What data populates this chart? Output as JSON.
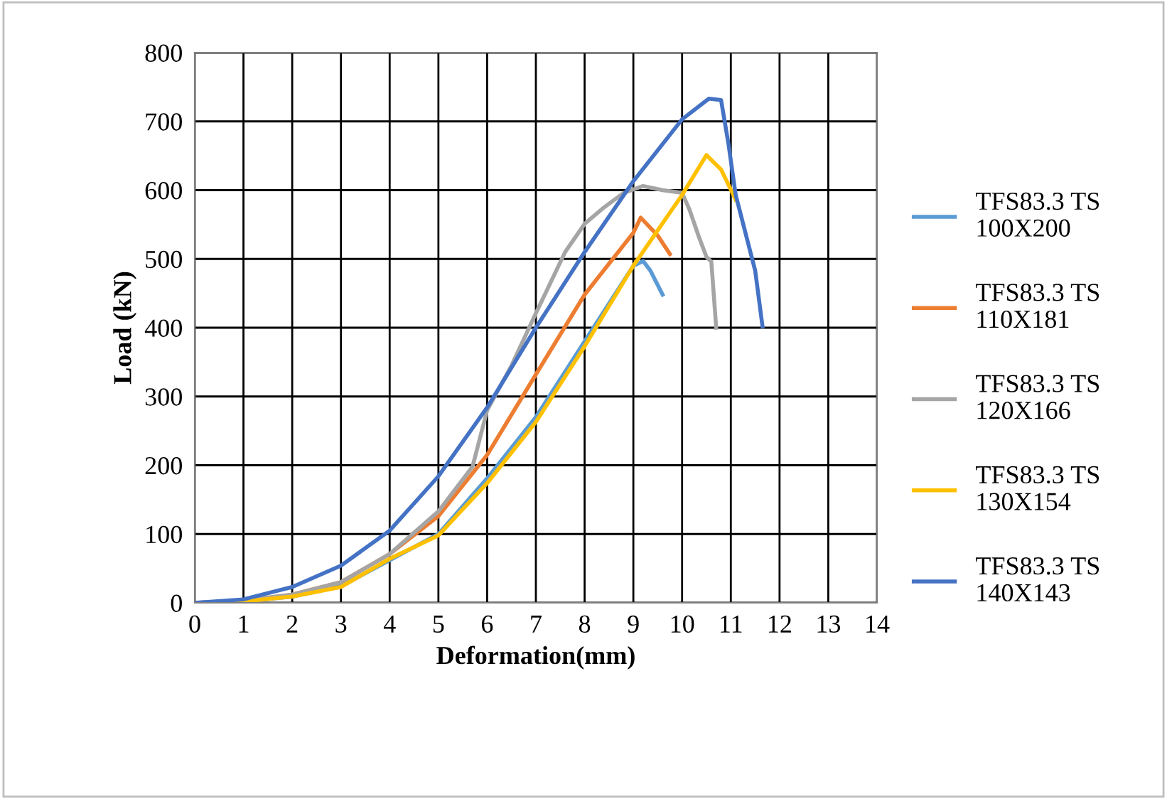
{
  "chart_data": {
    "type": "line",
    "xlabel": "Deformation(mm)",
    "ylabel": "Load (kN)",
    "xlim": [
      0,
      14
    ],
    "ylim": [
      0,
      800
    ],
    "xticks": [
      0,
      1,
      2,
      3,
      4,
      5,
      6,
      7,
      8,
      9,
      10,
      11,
      12,
      13,
      14
    ],
    "yticks": [
      0,
      100,
      200,
      300,
      400,
      500,
      600,
      700,
      800
    ],
    "grid": true,
    "legend": "right",
    "marker": "none",
    "line_style": "solid",
    "series": [
      {
        "name": "TFS83.3 TS\n100X200",
        "color": "#5b9bd5",
        "x": [
          0,
          1,
          2,
          3,
          4,
          5,
          6,
          7,
          8,
          9,
          9.2,
          9.35,
          9.6
        ],
        "values": [
          0,
          2,
          9,
          24,
          62,
          100,
          181,
          270,
          380,
          490,
          497,
          483,
          448
        ]
      },
      {
        "name": "TFS83.3 TS\n110X181",
        "color": "#ed7d31",
        "x": [
          0,
          1,
          2,
          3,
          4,
          5,
          6,
          7,
          8,
          9,
          9.15,
          9.5,
          9.75
        ],
        "values": [
          0,
          3,
          12,
          30,
          71,
          126,
          215,
          332,
          448,
          538,
          560,
          534,
          507
        ]
      },
      {
        "name": "TFS83.3 TS\n120X166",
        "color": "#a5a5a5",
        "x": [
          0,
          1,
          2,
          3,
          4,
          5,
          5.7,
          6,
          6.5,
          7,
          7.6,
          8,
          8.4,
          8.8,
          9.2,
          9.6,
          10,
          10.15,
          10.35,
          10.5,
          10.6,
          10.7
        ],
        "values": [
          0,
          3,
          12,
          30,
          71,
          133,
          198,
          280,
          345,
          421,
          510,
          551,
          575,
          596,
          606,
          600,
          596,
          572,
          531,
          503,
          496,
          400
        ]
      },
      {
        "name": "TFS83.3 TS\n130X154",
        "color": "#ffc000",
        "x": [
          0,
          1,
          2,
          3,
          4,
          5,
          6,
          7,
          8,
          9,
          10,
          10.5,
          10.8,
          11.1
        ],
        "values": [
          0,
          2,
          9,
          23,
          64,
          98,
          174,
          263,
          373,
          490,
          593,
          651,
          630,
          586
        ]
      },
      {
        "name": "TFS83.3 TS\n140X143",
        "color": "#4472c4",
        "x": [
          0,
          1,
          2,
          3,
          4,
          5,
          6,
          7,
          8,
          9,
          10,
          10.55,
          10.8,
          10.95,
          11.1,
          11.5,
          11.65
        ],
        "values": [
          0,
          5,
          23,
          54,
          105,
          184,
          284,
          400,
          510,
          613,
          703,
          733,
          731,
          668,
          593,
          483,
          402
        ]
      }
    ]
  }
}
